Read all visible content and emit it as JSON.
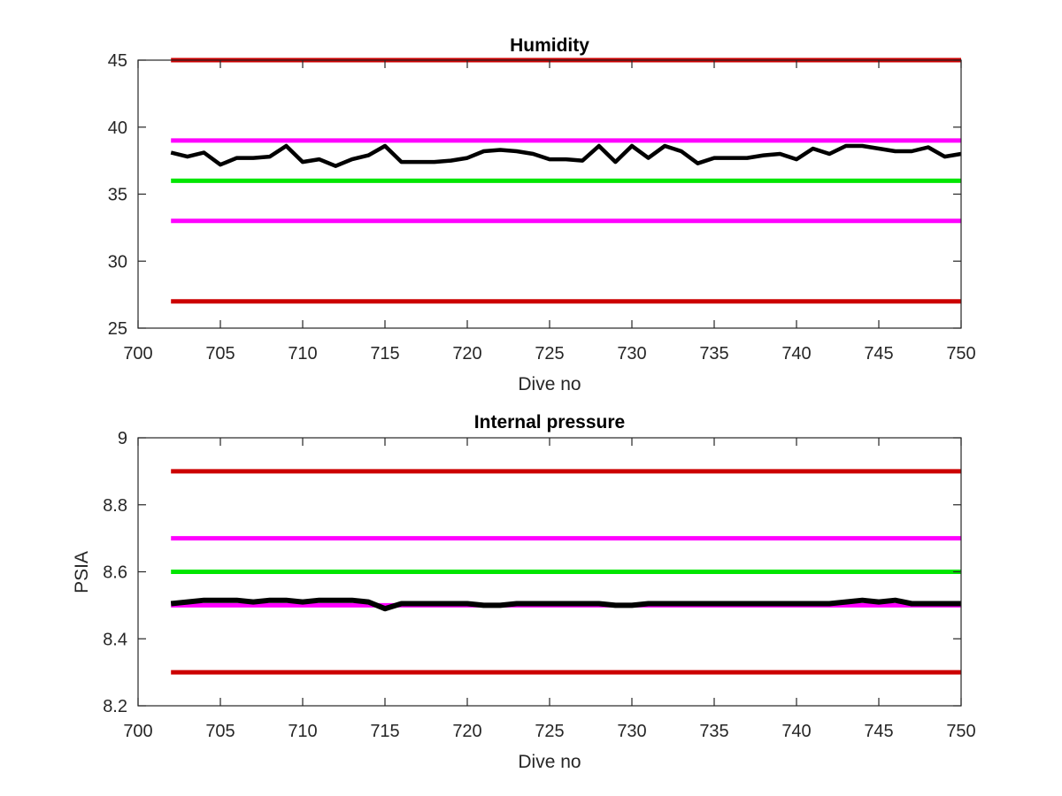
{
  "chart_data": [
    {
      "type": "line",
      "title": "Humidity",
      "xlabel": "Dive no",
      "ylabel": "",
      "xlim": [
        700,
        750
      ],
      "ylim": [
        25,
        45
      ],
      "xticks": [
        700,
        705,
        710,
        715,
        720,
        725,
        730,
        735,
        740,
        745,
        750
      ],
      "yticks": [
        25,
        30,
        35,
        40,
        45
      ],
      "grid": false,
      "threshold_lines": [
        {
          "y": 45,
          "x_range": [
            702,
            750
          ],
          "color": "#cc0000"
        },
        {
          "y": 39,
          "x_range": [
            702,
            750
          ],
          "color": "#ff00ff"
        },
        {
          "y": 36,
          "x_range": [
            702,
            750
          ],
          "color": "#00e600"
        },
        {
          "y": 33,
          "x_range": [
            702,
            750
          ],
          "color": "#ff00ff"
        },
        {
          "y": 27,
          "x_range": [
            702,
            750
          ],
          "color": "#cc0000"
        }
      ],
      "series": [
        {
          "color": "#000000",
          "x": [
            702,
            703,
            704,
            705,
            706,
            707,
            708,
            709,
            710,
            711,
            712,
            713,
            714,
            715,
            716,
            717,
            718,
            719,
            720,
            721,
            722,
            723,
            724,
            725,
            726,
            727,
            728,
            729,
            730,
            731,
            732,
            733,
            734,
            735,
            736,
            737,
            738,
            739,
            740,
            741,
            742,
            743,
            744,
            745,
            746,
            747,
            748,
            749,
            750
          ],
          "y": [
            38.1,
            37.8,
            38.1,
            37.2,
            37.7,
            37.7,
            37.8,
            38.6,
            37.4,
            37.6,
            37.1,
            37.6,
            37.9,
            38.6,
            37.4,
            37.4,
            37.4,
            37.5,
            37.7,
            38.2,
            38.3,
            38.2,
            38.0,
            37.6,
            37.6,
            37.5,
            38.6,
            37.4,
            38.6,
            37.7,
            38.6,
            38.2,
            37.3,
            37.7,
            37.7,
            37.7,
            37.9,
            38.0,
            37.6,
            38.4,
            38.0,
            38.6,
            38.6,
            38.4,
            38.2,
            38.2,
            38.5,
            37.8,
            38.0
          ]
        }
      ]
    },
    {
      "type": "line",
      "title": "Internal pressure",
      "xlabel": "Dive no",
      "ylabel": "PSIA",
      "xlim": [
        700,
        750
      ],
      "ylim": [
        8.2,
        9
      ],
      "xticks": [
        700,
        705,
        710,
        715,
        720,
        725,
        730,
        735,
        740,
        745,
        750
      ],
      "yticks": [
        8.2,
        8.4,
        8.6,
        8.8,
        9
      ],
      "grid": false,
      "threshold_lines": [
        {
          "y": 8.9,
          "x_range": [
            702,
            750
          ],
          "color": "#cc0000"
        },
        {
          "y": 8.7,
          "x_range": [
            702,
            750
          ],
          "color": "#ff00ff"
        },
        {
          "y": 8.6,
          "x_range": [
            702,
            750
          ],
          "color": "#00e600"
        },
        {
          "y": 8.5,
          "x_range": [
            702,
            750
          ],
          "color": "#ff00ff"
        },
        {
          "y": 8.3,
          "x_range": [
            702,
            750
          ],
          "color": "#cc0000"
        }
      ],
      "series": [
        {
          "color": "#000000",
          "x": [
            702,
            703,
            704,
            705,
            706,
            707,
            708,
            709,
            710,
            711,
            712,
            713,
            714,
            715,
            716,
            717,
            718,
            719,
            720,
            721,
            722,
            723,
            724,
            725,
            726,
            727,
            728,
            729,
            730,
            731,
            732,
            733,
            734,
            735,
            736,
            737,
            738,
            739,
            740,
            741,
            742,
            743,
            744,
            745,
            746,
            747,
            748,
            749,
            750
          ],
          "y": [
            8.505,
            8.51,
            8.515,
            8.515,
            8.515,
            8.51,
            8.515,
            8.515,
            8.51,
            8.515,
            8.515,
            8.515,
            8.51,
            8.49,
            8.505,
            8.505,
            8.505,
            8.505,
            8.505,
            8.5,
            8.5,
            8.505,
            8.505,
            8.505,
            8.505,
            8.505,
            8.505,
            8.5,
            8.5,
            8.505,
            8.505,
            8.505,
            8.505,
            8.505,
            8.505,
            8.505,
            8.505,
            8.505,
            8.505,
            8.505,
            8.505,
            8.51,
            8.515,
            8.51,
            8.515,
            8.505,
            8.505,
            8.505,
            8.505
          ]
        }
      ]
    }
  ]
}
